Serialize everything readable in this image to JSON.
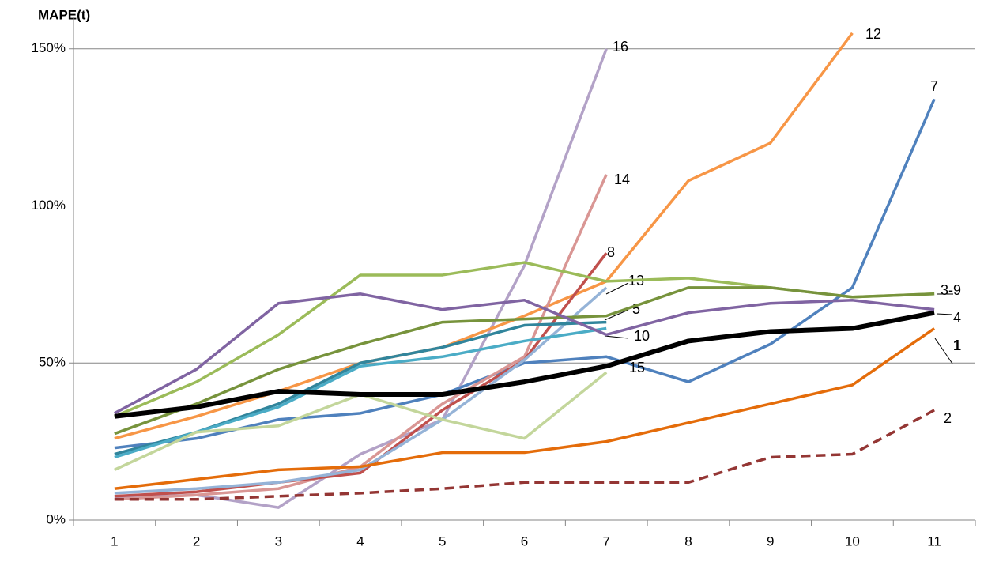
{
  "chart_data": {
    "type": "line",
    "y_axis_label": "MAPE(t)",
    "categories": [
      "1",
      "2",
      "3",
      "4",
      "5",
      "6",
      "7",
      "8",
      "9",
      "10",
      "11"
    ],
    "ylim": [
      0,
      160
    ],
    "yticks": [
      {
        "value": 0,
        "label": "0%"
      },
      {
        "value": 50,
        "label": "50%"
      },
      {
        "value": 100,
        "label": "100%"
      },
      {
        "value": 150,
        "label": "150%"
      }
    ],
    "grid": true,
    "series": [
      {
        "name": "16",
        "color": "#b3a2c7",
        "values": [
          7,
          8,
          4,
          21,
          32,
          81,
          150,
          null,
          null,
          null,
          null
        ]
      },
      {
        "name": "12",
        "color": "#f79646",
        "values": [
          26,
          33,
          41,
          50,
          55,
          65,
          76,
          108,
          120,
          155,
          null
        ]
      },
      {
        "name": "7",
        "color": "#4f81bd",
        "values": [
          23,
          26,
          32,
          34,
          40,
          50,
          52,
          44,
          56,
          74,
          134
        ]
      },
      {
        "name": "14",
        "color": "#d99694",
        "values": [
          6.6,
          8,
          10,
          17,
          37,
          52,
          110,
          null,
          null,
          null,
          null
        ]
      },
      {
        "name": "8",
        "color": "#c0504d",
        "values": [
          7.6,
          9,
          12,
          15,
          35,
          51,
          85,
          null,
          null,
          null,
          null
        ]
      },
      {
        "name": "13",
        "color": "#95b3d7",
        "values": [
          8.6,
          10,
          12,
          16,
          32,
          51,
          74,
          null,
          null,
          null,
          null
        ]
      },
      {
        "name": "5",
        "color": "#31859c",
        "values": [
          21,
          28,
          37,
          50,
          55,
          62,
          63,
          null,
          null,
          null,
          null
        ]
      },
      {
        "name": "10",
        "color": "#4bacc6",
        "values": [
          20,
          28,
          36,
          49,
          52,
          57,
          61,
          null,
          null,
          null,
          null
        ]
      },
      {
        "name": "3-9",
        "color": "#9bbb59",
        "values": [
          33,
          44,
          59,
          78,
          78,
          82,
          76,
          77,
          74,
          71,
          72
        ]
      },
      {
        "color": "#77933c",
        "values": [
          27.5,
          37,
          48,
          56,
          63,
          64,
          65,
          74,
          74,
          71,
          72
        ]
      },
      {
        "name": "4",
        "color": "#8064a2",
        "values": [
          34,
          48,
          69,
          72,
          67,
          70,
          59,
          66,
          69,
          70,
          67
        ]
      },
      {
        "name": "15",
        "color": "#c3d69b",
        "values": [
          16,
          28,
          30,
          40,
          32,
          26,
          47,
          null,
          null,
          null,
          null
        ]
      },
      {
        "color": "#e46c0a",
        "values": [
          10,
          13,
          16,
          17,
          21.5,
          21.5,
          25,
          31,
          37,
          43,
          61
        ]
      },
      {
        "name": "2",
        "color": "#943634",
        "dashed": true,
        "values": [
          6.6,
          6.6,
          7.6,
          8.6,
          10,
          12,
          12,
          12,
          20,
          21,
          35
        ]
      },
      {
        "name": "1",
        "color": "#000000",
        "width": 6,
        "values": [
          33,
          36,
          41,
          40,
          40,
          44,
          49,
          57,
          60,
          61,
          66
        ]
      }
    ]
  }
}
